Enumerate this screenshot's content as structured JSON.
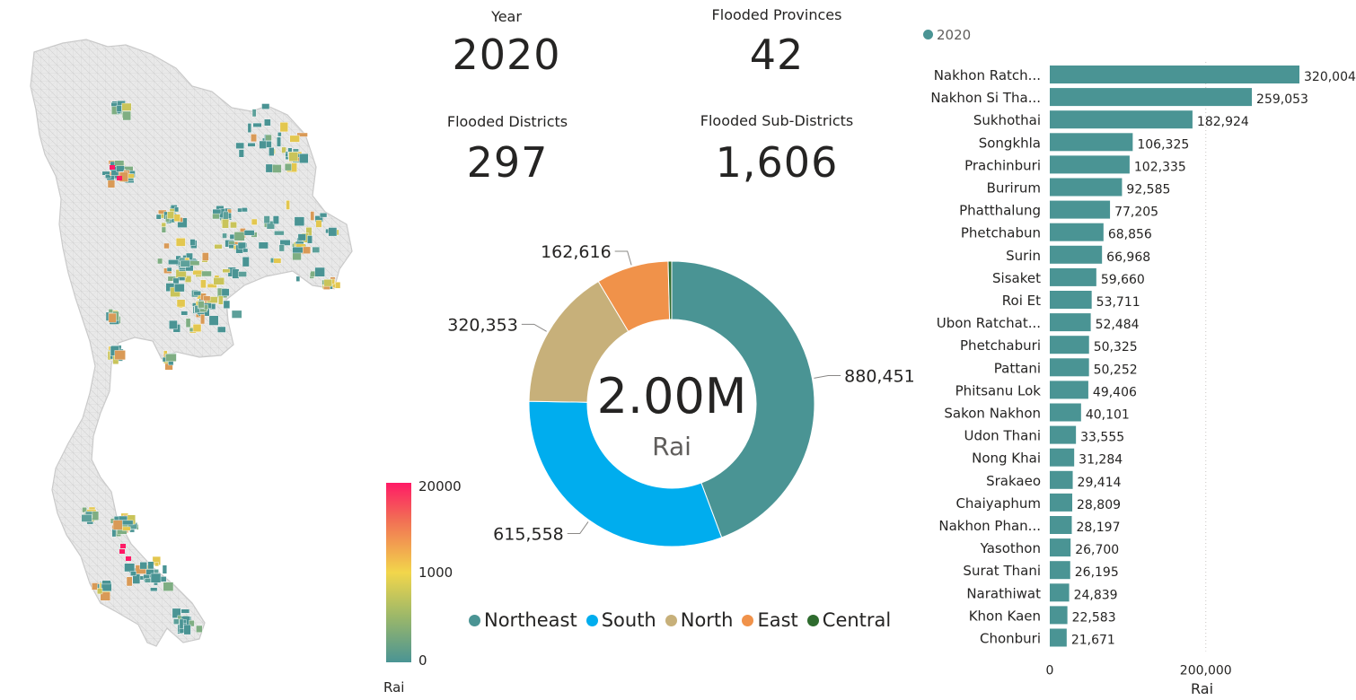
{
  "map": {
    "legend": {
      "label": "Rai",
      "ticks": [
        "20000",
        "1000",
        "0"
      ],
      "colors": [
        "#ff1a66",
        "#f2d64b",
        "#4a9494"
      ]
    },
    "base_color": "#e6e6e6",
    "boundary_color": "#cfcfcf"
  },
  "kpis": {
    "year": {
      "label": "Year",
      "value": "2020"
    },
    "provinces": {
      "label": "Flooded Provinces",
      "value": "42"
    },
    "districts": {
      "label": "Flooded Districts",
      "value": "297"
    },
    "subdistricts": {
      "label": "Flooded Sub-Districts",
      "value": "1,606"
    }
  },
  "donut": {
    "center_value": "2.00M",
    "center_label": "Rai"
  },
  "bar": {
    "legend_label": "2020",
    "x_axis_label": "Rai"
  },
  "chart_data": [
    {
      "type": "pie",
      "subtype": "donut",
      "title": "",
      "total_label": "2.00M",
      "unit": "Rai",
      "legend_position": "bottom",
      "categories": [
        "Northeast",
        "South",
        "North",
        "East",
        "Central"
      ],
      "values": [
        880451,
        615558,
        320353,
        162616,
        8000
      ],
      "value_labels": [
        "880,451",
        "615,558",
        "320,353",
        "162,616",
        ""
      ],
      "colors": [
        "#4a9494",
        "#00adee",
        "#c7b07a",
        "#f0924a",
        "#2e6b2e"
      ]
    },
    {
      "type": "bar",
      "orientation": "horizontal",
      "title": "",
      "xlabel": "Rai",
      "ylabel": "",
      "xlim": [
        0,
        320004
      ],
      "x_ticks": [
        0,
        200000
      ],
      "x_tick_labels": [
        "0",
        "200,000"
      ],
      "legend_position": "top-left",
      "series": [
        {
          "name": "2020",
          "color": "#4a9494"
        }
      ],
      "categories": [
        "Nakhon Ratch...",
        "Nakhon Si Tha...",
        "Sukhothai",
        "Songkhla",
        "Prachinburi",
        "Burirum",
        "Phatthalung",
        "Phetchabun",
        "Surin",
        "Sisaket",
        "Roi Et",
        "Ubon Ratchat...",
        "Phetchaburi",
        "Pattani",
        "Phitsanu Lok",
        "Sakon Nakhon",
        "Udon Thani",
        "Nong Khai",
        "Srakaeo",
        "Chaiyaphum",
        "Nakhon Phan...",
        "Yasothon",
        "Surat Thani",
        "Narathiwat",
        "Khon Kaen",
        "Chonburi"
      ],
      "values": [
        320004,
        259053,
        182924,
        106325,
        102335,
        92585,
        77205,
        68856,
        66968,
        59660,
        53711,
        52484,
        50325,
        50252,
        49406,
        40101,
        33555,
        31284,
        29414,
        28809,
        28197,
        26700,
        26195,
        24839,
        22583,
        21671
      ],
      "value_labels": [
        "320,004",
        "259,053",
        "182,924",
        "106,325",
        "102,335",
        "92,585",
        "77,205",
        "68,856",
        "66,968",
        "59,660",
        "53,711",
        "52,484",
        "50,325",
        "50,252",
        "49,406",
        "40,101",
        "33,555",
        "31,284",
        "29,414",
        "28,809",
        "28,197",
        "26,700",
        "26,195",
        "24,839",
        "22,583",
        "21,671"
      ]
    }
  ]
}
